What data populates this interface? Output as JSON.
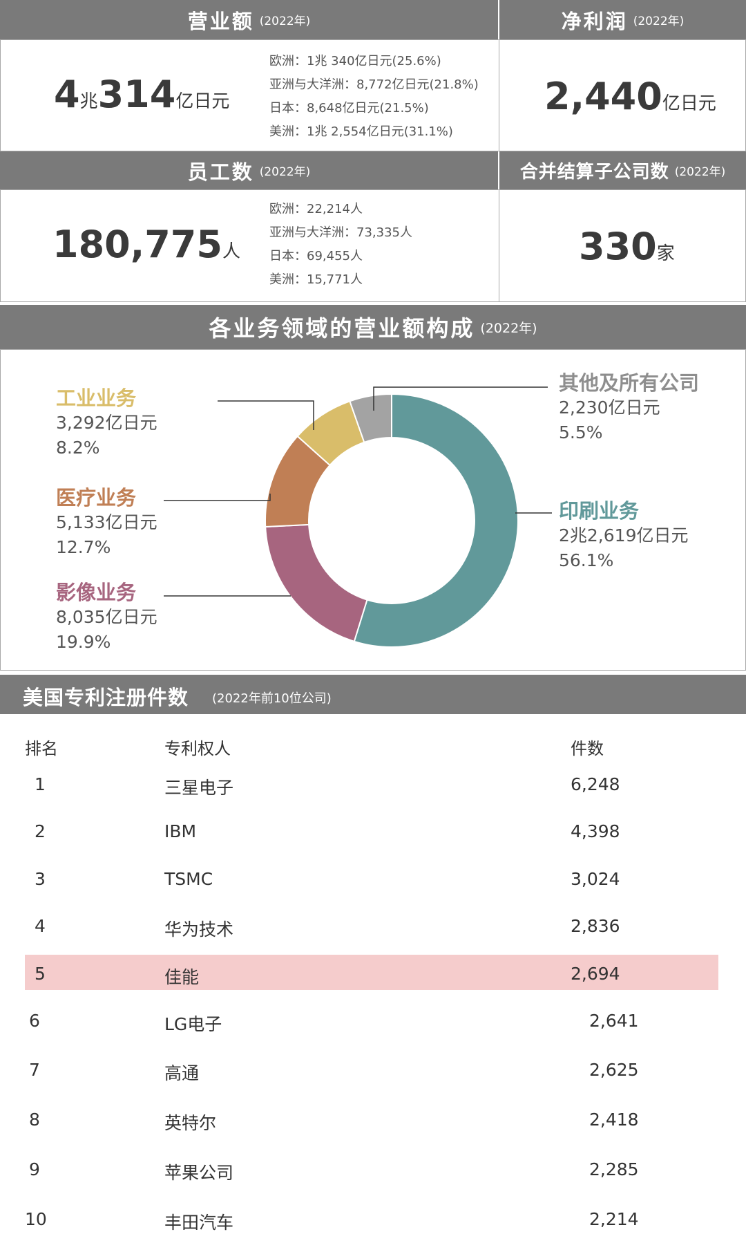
{
  "summary": {
    "sales": {
      "title": "营业额",
      "year": "(2022年)",
      "value_prefix": "4",
      "value_unit1": "兆",
      "value_mid": "314",
      "value_unit2": "亿日元",
      "breakdown": [
        "欧洲：1兆 340亿日元(25.6%)",
        "亚洲与大洋洲：8,772亿日元(21.8%)",
        "日本：8,648亿日元(21.5%)",
        "美洲：1兆 2,554亿日元(31.1%)"
      ]
    },
    "profit": {
      "title": "净利润",
      "year": "(2022年)",
      "value": "2,440",
      "unit": "亿日元"
    },
    "employees": {
      "title": "员工数",
      "year": "(2022年)",
      "value": "180,775",
      "unit": "人",
      "breakdown": [
        "欧洲：22,214人",
        "亚洲与大洋洲：73,335人",
        "日本：69,455人",
        "美洲：15,771人"
      ]
    },
    "subsidiaries": {
      "title": "合并结算子公司数",
      "year": "(2022年)",
      "value": "330",
      "unit": "家"
    }
  },
  "chart_data": [
    {
      "type": "pie",
      "title": "各业务领域的营业额构成",
      "subtitle": "(2022年)",
      "slices": [
        {
          "name": "印刷业务",
          "amount": "2兆2,619亿日元",
          "percent_label": "56.1%",
          "value": 56.1,
          "color": "#61999a"
        },
        {
          "name": "影像业务",
          "amount": "8,035亿日元",
          "percent_label": "19.9%",
          "value": 19.9,
          "color": "#a7657f"
        },
        {
          "name": "医疗业务",
          "amount": "5,133亿日元",
          "percent_label": "12.7%",
          "value": 12.7,
          "color": "#c07f55"
        },
        {
          "name": "工业业务",
          "amount": "3,292亿日元",
          "percent_label": "8.2%",
          "value": 8.2,
          "color": "#d9bd6a"
        },
        {
          "name": "其他及所有公司",
          "amount": "2,230亿日元",
          "percent_label": "5.5%",
          "value": 5.5,
          "color": "#a3a3a3"
        }
      ]
    },
    {
      "type": "table",
      "title": "美国专利注册件数",
      "subtitle": "(2022年前10位公司)",
      "columns": [
        "排名",
        "专利权人",
        "件数"
      ],
      "rows": [
        {
          "rank": "1",
          "name": "三星电子",
          "count": "6,248",
          "value": 6248
        },
        {
          "rank": "2",
          "name": "IBM",
          "count": "4,398",
          "value": 4398
        },
        {
          "rank": "3",
          "name": "TSMC",
          "count": "3,024",
          "value": 3024
        },
        {
          "rank": "4",
          "name": "华为技术",
          "count": "2,836",
          "value": 2836
        },
        {
          "rank": "5",
          "name": "佳能",
          "count": "2,694",
          "value": 2694,
          "highlight": true
        },
        {
          "rank": "6",
          "name": "LG电子",
          "count": "2,641",
          "value": 2641
        },
        {
          "rank": "7",
          "name": "高通",
          "count": "2,625",
          "value": 2625
        },
        {
          "rank": "8",
          "name": "英特尔",
          "count": "2,418",
          "value": 2418
        },
        {
          "rank": "9",
          "name": "苹果公司",
          "count": "2,285",
          "value": 2285
        },
        {
          "rank": "10",
          "name": "丰田汽车",
          "count": "2,214",
          "value": 2214
        }
      ]
    }
  ],
  "colors": {
    "header_bg": "#7a7a7a",
    "highlight_row": "#f5cccc",
    "border": "#a8a8a8"
  }
}
